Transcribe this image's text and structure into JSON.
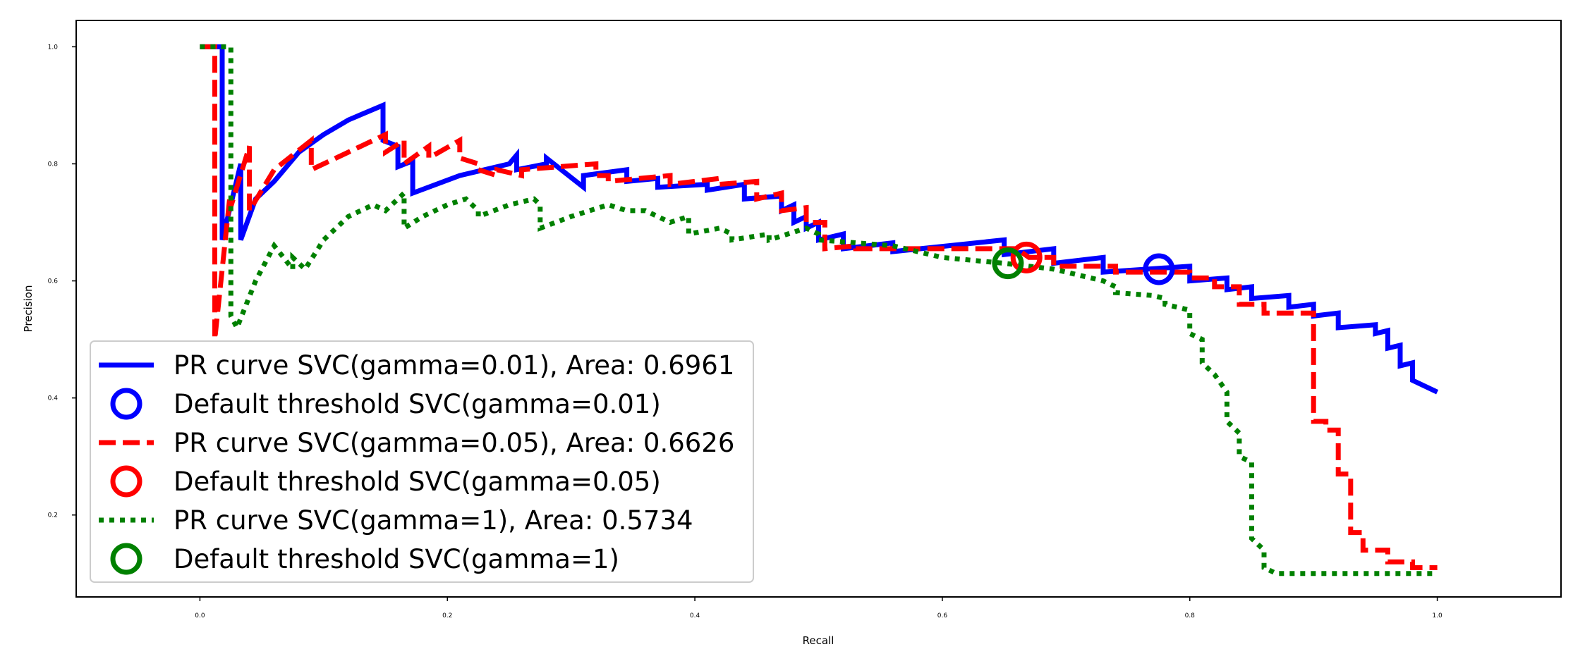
{
  "chart_data": {
    "type": "line",
    "title": "",
    "xlabel": "Recall",
    "ylabel": "Precision",
    "xlim": [
      -0.1,
      1.1
    ],
    "ylim": [
      0.06,
      1.045
    ],
    "xticks": [
      0.0,
      0.2,
      0.4,
      0.6,
      0.8,
      1.0
    ],
    "yticks": [
      0.2,
      0.4,
      0.6,
      0.8,
      1.0
    ],
    "grid": false,
    "legend_position": "lower-left",
    "series": [
      {
        "name": "PR curve SVC(gamma=0.01), Area: 0.6961",
        "kind": "line",
        "color": "#0000ff",
        "style": "solid",
        "x": [
          0.0,
          0.018,
          0.018,
          0.033,
          0.033,
          0.045,
          0.06,
          0.08,
          0.1,
          0.12,
          0.148,
          0.148,
          0.16,
          0.16,
          0.172,
          0.172,
          0.21,
          0.25,
          0.256,
          0.256,
          0.28,
          0.28,
          0.31,
          0.31,
          0.345,
          0.345,
          0.37,
          0.37,
          0.41,
          0.41,
          0.44,
          0.44,
          0.47,
          0.47,
          0.48,
          0.48,
          0.49,
          0.49,
          0.5,
          0.5,
          0.52,
          0.52,
          0.56,
          0.56,
          0.65,
          0.65,
          0.69,
          0.69,
          0.73,
          0.73,
          0.8,
          0.8,
          0.83,
          0.83,
          0.85,
          0.85,
          0.88,
          0.88,
          0.9,
          0.9,
          0.92,
          0.92,
          0.95,
          0.95,
          0.96,
          0.96,
          0.97,
          0.97,
          0.98,
          0.98,
          1.0
        ],
        "y": [
          1.0,
          1.0,
          0.67,
          0.8,
          0.67,
          0.74,
          0.77,
          0.82,
          0.85,
          0.875,
          0.9,
          0.84,
          0.83,
          0.795,
          0.805,
          0.75,
          0.78,
          0.8,
          0.815,
          0.79,
          0.8,
          0.81,
          0.76,
          0.78,
          0.79,
          0.77,
          0.775,
          0.76,
          0.765,
          0.755,
          0.765,
          0.74,
          0.745,
          0.72,
          0.73,
          0.7,
          0.71,
          0.69,
          0.7,
          0.67,
          0.68,
          0.655,
          0.665,
          0.65,
          0.67,
          0.645,
          0.655,
          0.63,
          0.64,
          0.615,
          0.625,
          0.6,
          0.605,
          0.585,
          0.59,
          0.57,
          0.575,
          0.555,
          0.56,
          0.54,
          0.545,
          0.52,
          0.525,
          0.51,
          0.515,
          0.485,
          0.49,
          0.455,
          0.46,
          0.43,
          0.41
        ]
      },
      {
        "name": "Default threshold SVC(gamma=0.01)",
        "kind": "marker",
        "color": "#0000ff",
        "x": [
          0.775
        ],
        "y": [
          0.62
        ]
      },
      {
        "name": "PR curve SVC(gamma=0.05), Area: 0.6626",
        "kind": "line",
        "color": "#ff0000",
        "style": "dashed",
        "x": [
          0.0,
          0.012,
          0.012,
          0.024,
          0.024,
          0.04,
          0.04,
          0.06,
          0.09,
          0.09,
          0.12,
          0.15,
          0.15,
          0.165,
          0.165,
          0.185,
          0.185,
          0.21,
          0.21,
          0.225,
          0.225,
          0.24,
          0.24,
          0.26,
          0.26,
          0.32,
          0.32,
          0.33,
          0.33,
          0.38,
          0.38,
          0.42,
          0.42,
          0.45,
          0.45,
          0.47,
          0.47,
          0.49,
          0.49,
          0.505,
          0.505,
          0.53,
          0.53,
          0.66,
          0.67,
          0.69,
          0.69,
          0.74,
          0.74,
          0.8,
          0.8,
          0.82,
          0.82,
          0.84,
          0.84,
          0.86,
          0.86,
          0.9,
          0.9,
          0.91,
          0.91,
          0.92,
          0.92,
          0.93,
          0.93,
          0.94,
          0.94,
          0.96,
          0.96,
          0.98,
          0.98,
          1.0
        ],
        "y": [
          1.0,
          1.0,
          0.5,
          0.74,
          0.72,
          0.83,
          0.72,
          0.79,
          0.84,
          0.79,
          0.82,
          0.85,
          0.82,
          0.84,
          0.8,
          0.83,
          0.81,
          0.84,
          0.81,
          0.8,
          0.79,
          0.78,
          0.79,
          0.78,
          0.79,
          0.8,
          0.78,
          0.78,
          0.77,
          0.78,
          0.765,
          0.775,
          0.765,
          0.77,
          0.74,
          0.75,
          0.72,
          0.725,
          0.7,
          0.7,
          0.655,
          0.66,
          0.655,
          0.655,
          0.64,
          0.64,
          0.625,
          0.625,
          0.615,
          0.615,
          0.605,
          0.605,
          0.59,
          0.59,
          0.56,
          0.56,
          0.545,
          0.545,
          0.36,
          0.36,
          0.345,
          0.345,
          0.27,
          0.27,
          0.17,
          0.17,
          0.14,
          0.14,
          0.12,
          0.12,
          0.11,
          0.11
        ]
      },
      {
        "name": "Default threshold SVC(gamma=0.05)",
        "kind": "marker",
        "color": "#ff0000",
        "x": [
          0.668
        ],
        "y": [
          0.64
        ]
      },
      {
        "name": "PR curve SVC(gamma=1), Area: 0.5734",
        "kind": "line",
        "color": "#008000",
        "style": "dotted",
        "x": [
          0.0,
          0.025,
          0.025,
          0.03,
          0.045,
          0.06,
          0.075,
          0.075,
          0.085,
          0.1,
          0.12,
          0.14,
          0.15,
          0.165,
          0.165,
          0.18,
          0.2,
          0.215,
          0.225,
          0.225,
          0.25,
          0.27,
          0.275,
          0.275,
          0.3,
          0.33,
          0.345,
          0.36,
          0.38,
          0.395,
          0.395,
          0.42,
          0.43,
          0.43,
          0.46,
          0.46,
          0.49,
          0.5,
          0.5,
          0.56,
          0.6,
          0.65,
          0.69,
          0.73,
          0.74,
          0.74,
          0.77,
          0.78,
          0.78,
          0.8,
          0.8,
          0.81,
          0.81,
          0.82,
          0.83,
          0.83,
          0.84,
          0.84,
          0.85,
          0.85,
          0.86,
          0.86,
          0.87,
          0.87,
          1.0
        ],
        "y": [
          1.0,
          1.0,
          0.54,
          0.52,
          0.6,
          0.66,
          0.62,
          0.64,
          0.62,
          0.67,
          0.71,
          0.73,
          0.72,
          0.75,
          0.69,
          0.71,
          0.73,
          0.74,
          0.72,
          0.71,
          0.73,
          0.74,
          0.73,
          0.69,
          0.71,
          0.73,
          0.72,
          0.72,
          0.7,
          0.71,
          0.68,
          0.69,
          0.68,
          0.67,
          0.68,
          0.67,
          0.69,
          0.68,
          0.67,
          0.66,
          0.64,
          0.63,
          0.62,
          0.6,
          0.59,
          0.58,
          0.575,
          0.57,
          0.56,
          0.55,
          0.51,
          0.5,
          0.46,
          0.44,
          0.41,
          0.36,
          0.34,
          0.3,
          0.29,
          0.16,
          0.14,
          0.11,
          0.1,
          0.1,
          0.1
        ]
      },
      {
        "name": "Default threshold SVC(gamma=1)",
        "kind": "marker",
        "color": "#008000",
        "x": [
          0.653
        ],
        "y": [
          0.63
        ]
      }
    ]
  }
}
